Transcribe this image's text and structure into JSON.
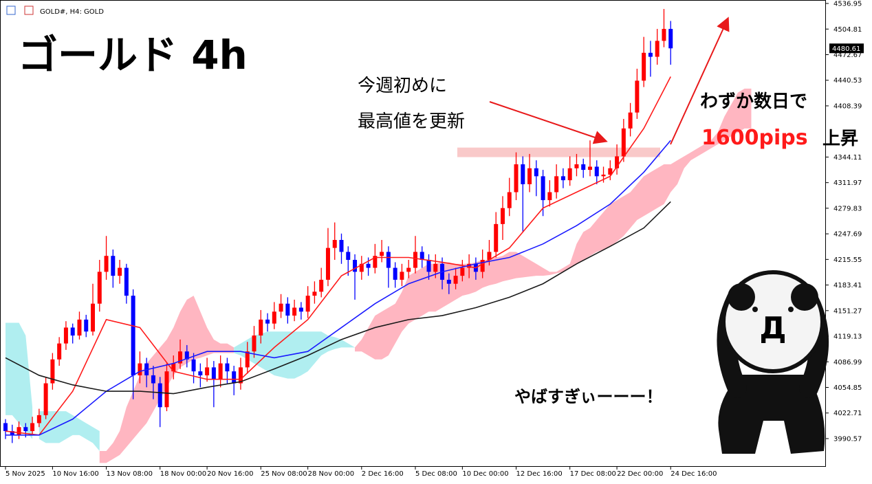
{
  "chart_data": {
    "type": "candlestick",
    "header": "GOLD#, H4:  GOLD",
    "title": "ゴールド 4h",
    "annotations": [
      "今週初めに",
      "最高値を更新",
      "わずか数日で",
      "1600pips",
      "上昇",
      "やばすぎぃーーー！",
      "Д"
    ],
    "up_color": "#ff0000",
    "down_color": "#0000ff",
    "ylim": [
      3956.0,
      4541.3
    ],
    "yticks": [
      4536.95,
      4504.81,
      4472.67,
      4440.53,
      4408.39,
      4344.11,
      4311.97,
      4279.83,
      4247.69,
      4215.55,
      4183.41,
      4151.27,
      4119.13,
      4086.99,
      4054.85,
      4022.71,
      3990.57
    ],
    "last_price": 4480.61,
    "xticks": [
      {
        "value": 0,
        "label": "5 Nov 2025"
      },
      {
        "value": 7,
        "label": "10 Nov 16:00"
      },
      {
        "value": 15,
        "label": "13 Nov 08:00"
      },
      {
        "value": 23,
        "label": "18 Nov 00:00"
      },
      {
        "value": 30,
        "label": "20 Nov 16:00"
      },
      {
        "value": 38,
        "label": "25 Nov 08:00"
      },
      {
        "value": 45,
        "label": "28 Nov 00:00"
      },
      {
        "value": 53,
        "label": "2 Dec 16:00"
      },
      {
        "value": 61,
        "label": "5 Dec 08:00"
      },
      {
        "value": 68,
        "label": "10 Dec 00:00"
      },
      {
        "value": 76,
        "label": "12 Dec 16:00"
      },
      {
        "value": 84,
        "label": "17 Dec 08:00"
      },
      {
        "value": 91,
        "label": "22 Dec 00:00"
      },
      {
        "value": 99,
        "label": "24 Dec 16:00"
      }
    ],
    "zone": {
      "color": "#f9c9c9",
      "range": [
        4344,
        4356
      ]
    },
    "candles": [
      [
        4010,
        4015,
        3990,
        4000
      ],
      [
        4000,
        4008,
        3985,
        3995
      ],
      [
        3995,
        4012,
        3990,
        4005
      ],
      [
        4005,
        4010,
        3992,
        4000
      ],
      [
        4000,
        4018,
        3995,
        4010
      ],
      [
        4010,
        4028,
        4005,
        4020
      ],
      [
        4020,
        4068,
        4015,
        4060
      ],
      [
        4060,
        4098,
        4052,
        4090
      ],
      [
        4090,
        4118,
        4082,
        4110
      ],
      [
        4110,
        4138,
        4102,
        4130
      ],
      [
        4130,
        4135,
        4110,
        4120
      ],
      [
        4120,
        4150,
        4115,
        4140
      ],
      [
        4140,
        4146,
        4118,
        4125
      ],
      [
        4125,
        4185,
        4120,
        4160
      ],
      [
        4160,
        4215,
        4150,
        4200
      ],
      [
        4200,
        4245,
        4190,
        4220
      ],
      [
        4220,
        4228,
        4180,
        4195
      ],
      [
        4195,
        4215,
        4185,
        4205
      ],
      [
        4205,
        4210,
        4160,
        4170
      ],
      [
        4170,
        4178,
        4040,
        4070
      ],
      [
        4070,
        4100,
        4060,
        4085
      ],
      [
        4085,
        4092,
        4055,
        4070
      ],
      [
        4070,
        4082,
        4040,
        4060
      ],
      [
        4060,
        4068,
        4005,
        4030
      ],
      [
        4030,
        4085,
        4025,
        4075
      ],
      [
        4075,
        4095,
        4065,
        4085
      ],
      [
        4085,
        4115,
        4078,
        4100
      ],
      [
        4100,
        4108,
        4080,
        4090
      ],
      [
        4090,
        4098,
        4060,
        4075
      ],
      [
        4075,
        4085,
        4055,
        4070
      ],
      [
        4070,
        4092,
        4062,
        4080
      ],
      [
        4080,
        4088,
        4030,
        4065
      ],
      [
        4065,
        4095,
        4055,
        4085
      ],
      [
        4085,
        4092,
        4060,
        4075
      ],
      [
        4075,
        4082,
        4045,
        4060
      ],
      [
        4060,
        4092,
        4052,
        4080
      ],
      [
        4080,
        4112,
        4072,
        4100
      ],
      [
        4100,
        4132,
        4092,
        4120
      ],
      [
        4120,
        4152,
        4110,
        4140
      ],
      [
        4140,
        4148,
        4125,
        4135
      ],
      [
        4135,
        4162,
        4128,
        4150
      ],
      [
        4150,
        4172,
        4142,
        4160
      ],
      [
        4160,
        4168,
        4135,
        4145
      ],
      [
        4145,
        4165,
        4138,
        4155
      ],
      [
        4155,
        4162,
        4140,
        4150
      ],
      [
        4150,
        4182,
        4142,
        4170
      ],
      [
        4170,
        4188,
        4160,
        4175
      ],
      [
        4175,
        4205,
        4168,
        4190
      ],
      [
        4190,
        4255,
        4182,
        4230
      ],
      [
        4230,
        4262,
        4215,
        4240
      ],
      [
        4240,
        4248,
        4210,
        4225
      ],
      [
        4225,
        4232,
        4195,
        4215
      ],
      [
        4215,
        4222,
        4165,
        4200
      ],
      [
        4200,
        4220,
        4190,
        4210
      ],
      [
        4210,
        4218,
        4195,
        4205
      ],
      [
        4205,
        4235,
        4198,
        4220
      ],
      [
        4220,
        4240,
        4212,
        4225
      ],
      [
        4225,
        4232,
        4180,
        4205
      ],
      [
        4205,
        4212,
        4180,
        4190
      ],
      [
        4190,
        4210,
        4182,
        4200
      ],
      [
        4200,
        4215,
        4192,
        4205
      ],
      [
        4205,
        4245,
        4198,
        4225
      ],
      [
        4225,
        4232,
        4205,
        4215
      ],
      [
        4215,
        4222,
        4190,
        4200
      ],
      [
        4200,
        4222,
        4192,
        4210
      ],
      [
        4210,
        4218,
        4178,
        4190
      ],
      [
        4190,
        4198,
        4172,
        4185
      ],
      [
        4185,
        4205,
        4178,
        4195
      ],
      [
        4195,
        4215,
        4188,
        4205
      ],
      [
        4205,
        4222,
        4192,
        4210
      ],
      [
        4210,
        4218,
        4190,
        4200
      ],
      [
        4200,
        4228,
        4192,
        4215
      ],
      [
        4215,
        4240,
        4208,
        4225
      ],
      [
        4225,
        4275,
        4218,
        4260
      ],
      [
        4260,
        4295,
        4240,
        4280
      ],
      [
        4280,
        4318,
        4270,
        4300
      ],
      [
        4300,
        4350,
        4290,
        4335
      ],
      [
        4335,
        4345,
        4250,
        4310
      ],
      [
        4310,
        4348,
        4300,
        4330
      ],
      [
        4330,
        4340,
        4295,
        4320
      ],
      [
        4320,
        4328,
        4270,
        4290
      ],
      [
        4290,
        4315,
        4282,
        4300
      ],
      [
        4300,
        4335,
        4292,
        4320
      ],
      [
        4320,
        4330,
        4305,
        4315
      ],
      [
        4315,
        4345,
        4308,
        4330
      ],
      [
        4330,
        4348,
        4320,
        4335
      ],
      [
        4335,
        4342,
        4318,
        4328
      ],
      [
        4328,
        4365,
        4320,
        4332
      ],
      [
        4332,
        4340,
        4310,
        4320
      ],
      [
        4320,
        4332,
        4312,
        4322
      ],
      [
        4322,
        4340,
        4315,
        4330
      ],
      [
        4330,
        4360,
        4322,
        4345
      ],
      [
        4345,
        4392,
        4338,
        4380
      ],
      [
        4380,
        4412,
        4370,
        4400
      ],
      [
        4400,
        4455,
        4392,
        4440
      ],
      [
        4440,
        4495,
        4432,
        4475
      ],
      [
        4475,
        4490,
        4445,
        4470
      ],
      [
        4470,
        4505,
        4460,
        4490
      ],
      [
        4490,
        4530,
        4482,
        4505
      ],
      [
        4505,
        4515,
        4460,
        4480.61
      ]
    ],
    "series": [
      {
        "color": "#ff1a1a",
        "x": [
          0,
          5,
          10,
          15,
          20,
          25,
          30,
          35,
          40,
          45,
          50,
          55,
          60,
          65,
          70,
          75,
          80,
          85,
          90,
          95,
          99
        ],
        "values": [
          4000,
          3995,
          4050,
          4140,
          4130,
          4075,
          4065,
          4065,
          4105,
          4140,
          4195,
          4218,
          4218,
          4212,
          4205,
          4230,
          4280,
          4300,
          4320,
          4380,
          4445
        ]
      },
      {
        "color": "#1a1aff",
        "x": [
          0,
          5,
          10,
          15,
          20,
          25,
          30,
          35,
          40,
          45,
          50,
          55,
          60,
          65,
          70,
          75,
          80,
          85,
          90,
          95,
          99
        ],
        "values": [
          3995,
          3995,
          4015,
          4050,
          4075,
          4085,
          4100,
          4100,
          4092,
          4100,
          4130,
          4160,
          4185,
          4200,
          4210,
          4218,
          4235,
          4258,
          4285,
          4325,
          4365
        ]
      },
      {
        "color": "#1a1a1a",
        "x": [
          0,
          5,
          10,
          15,
          20,
          25,
          30,
          35,
          40,
          45,
          50,
          55,
          60,
          65,
          70,
          75,
          80,
          85,
          90,
          95,
          99
        ],
        "values": [
          4092,
          4070,
          4058,
          4050,
          4050,
          4047,
          4055,
          4062,
          4078,
          4095,
          4115,
          4130,
          4140,
          4145,
          4155,
          4168,
          4185,
          4210,
          4232,
          4255,
          4288
        ]
      }
    ],
    "cloud": [
      {
        "color": "#b0eef0",
        "x": [
          0,
          1,
          2,
          3,
          4
        ],
        "upper": [
          4136,
          4136,
          4136,
          4120,
          4030
        ],
        "lower": [
          4020,
          4020,
          4010,
          4000,
          3990
        ]
      },
      {
        "color": "#b0eef0",
        "x": [
          5,
          6,
          7,
          8,
          9,
          10,
          11,
          12,
          13,
          14
        ],
        "upper": [
          4025,
          4025,
          4025,
          4025,
          4025,
          4020,
          4015,
          4010,
          4005,
          4000
        ],
        "lower": [
          3990,
          3985,
          3985,
          3985,
          3990,
          3995,
          3995,
          3990,
          3985,
          3975
        ]
      },
      {
        "color": "#ffb6c1",
        "x": [
          14,
          15,
          16,
          17,
          18,
          19,
          20,
          21,
          22,
          23,
          24,
          25,
          26,
          27,
          28,
          29,
          30,
          31,
          32,
          33,
          34
        ],
        "upper": [
          3975,
          3975,
          3985,
          4000,
          4030,
          4050,
          4070,
          4085,
          4095,
          4105,
          4115,
          4130,
          4150,
          4165,
          4170,
          4150,
          4130,
          4115,
          4110,
          4110,
          4105
        ],
        "lower": [
          3960,
          3960,
          3965,
          3970,
          3980,
          3990,
          4000,
          4010,
          4025,
          4040,
          4055,
          4070,
          4080,
          4085,
          4090,
          4092,
          4095,
          4098,
          4098,
          4098,
          4098
        ]
      },
      {
        "color": "#b0eef0",
        "x": [
          34,
          35,
          36,
          37,
          38,
          39,
          40,
          41,
          42,
          43,
          44,
          45,
          46,
          47,
          48,
          49,
          50,
          51,
          52
        ],
        "upper": [
          4105,
          4110,
          4115,
          4120,
          4122,
          4125,
          4125,
          4125,
          4125,
          4125,
          4125,
          4125,
          4125,
          4125,
          4120,
          4118,
          4115,
          4110,
          4105
        ],
        "lower": [
          4098,
          4095,
          4090,
          4085,
          4080,
          4075,
          4070,
          4068,
          4066,
          4066,
          4070,
          4075,
          4085,
          4095,
          4100,
          4103,
          4105,
          4105,
          4105
        ]
      },
      {
        "color": "#ffb6c1",
        "x": [
          52,
          53,
          54,
          55,
          56,
          57,
          58,
          59,
          60,
          61,
          62,
          63,
          64,
          65,
          66,
          67,
          68,
          69,
          70,
          71,
          72,
          73,
          74,
          75,
          76,
          77,
          78,
          79,
          80,
          81,
          82,
          83,
          84,
          85,
          86,
          87,
          88,
          89,
          90,
          91,
          92,
          93,
          94,
          95,
          96,
          97,
          98,
          99,
          100,
          101,
          102,
          103,
          104,
          105,
          106,
          107,
          108,
          109,
          110,
          111
        ],
        "upper": [
          4105,
          4115,
          4130,
          4145,
          4150,
          4155,
          4160,
          4175,
          4195,
          4200,
          4205,
          4210,
          4210,
          4212,
          4212,
          4210,
          4210,
          4210,
          4212,
          4215,
          4215,
          4218,
          4220,
          4225,
          4225,
          4220,
          4215,
          4210,
          4205,
          4200,
          4200,
          4205,
          4210,
          4235,
          4250,
          4255,
          4265,
          4275,
          4285,
          4290,
          4295,
          4300,
          4310,
          4320,
          4325,
          4330,
          4335,
          4335,
          4340,
          4345,
          4350,
          4355,
          4360,
          4365,
          4375,
          4395,
          4410,
          4425,
          4430,
          4430
        ],
        "lower": [
          4100,
          4100,
          4095,
          4090,
          4090,
          4095,
          4110,
          4125,
          4135,
          4140,
          4145,
          4150,
          4150,
          4155,
          4160,
          4165,
          4170,
          4172,
          4175,
          4180,
          4183,
          4185,
          4188,
          4190,
          4192,
          4193,
          4194,
          4195,
          4195,
          4196,
          4198,
          4200,
          4205,
          4210,
          4215,
          4220,
          4225,
          4228,
          4232,
          4238,
          4245,
          4255,
          4265,
          4270,
          4275,
          4280,
          4285,
          4300,
          4310,
          4330,
          4340,
          4345,
          4350,
          4355,
          4360,
          4365,
          4370,
          4375,
          4380,
          4380
        ]
      }
    ]
  }
}
